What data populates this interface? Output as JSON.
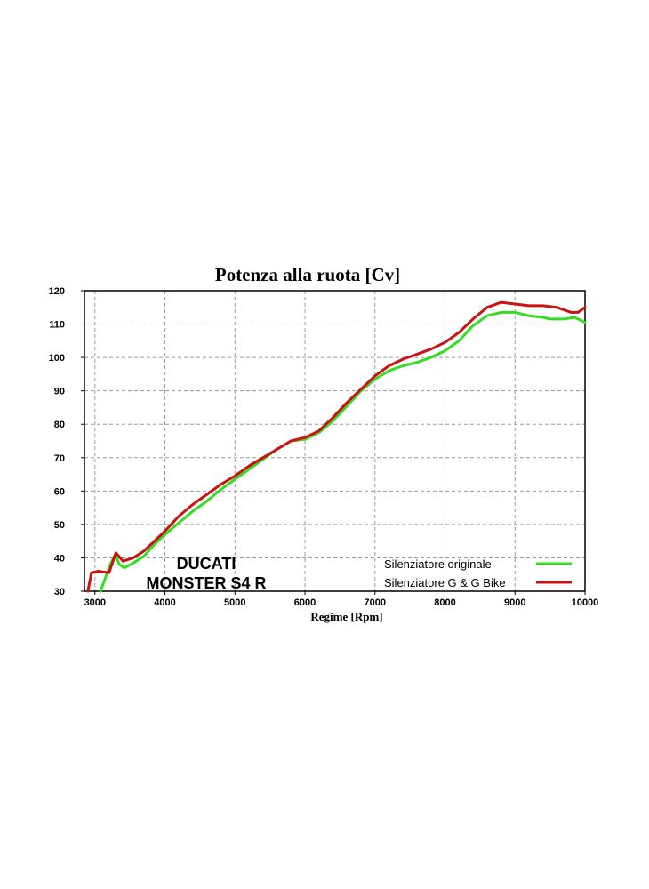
{
  "chart_data": {
    "type": "line",
    "title": "Potenza alla ruota [Cv]",
    "xlabel": "Regime [Rpm]",
    "ylabel": "",
    "xlim": [
      2850,
      10000
    ],
    "ylim": [
      30,
      120
    ],
    "xticks": [
      "3000",
      "4000",
      "5000",
      "6000",
      "7000",
      "8000",
      "9000",
      "10000"
    ],
    "yticks": [
      "30",
      "40",
      "50",
      "60",
      "70",
      "80",
      "90",
      "100",
      "110",
      "120"
    ],
    "grid": true,
    "legend_position": "bottom-right",
    "annotation": [
      "DUCATI",
      "MONSTER S4 R"
    ],
    "series": [
      {
        "name": "Silenziatore originale",
        "color": "#33dd22",
        "points": [
          [
            3080,
            30
          ],
          [
            3150,
            34
          ],
          [
            3220,
            38
          ],
          [
            3290,
            41
          ],
          [
            3350,
            38
          ],
          [
            3420,
            37
          ],
          [
            3550,
            38.5
          ],
          [
            3700,
            40.5
          ],
          [
            3850,
            44
          ],
          [
            4000,
            47
          ],
          [
            4200,
            50.5
          ],
          [
            4400,
            54
          ],
          [
            4600,
            57
          ],
          [
            4800,
            60.5
          ],
          [
            5000,
            63.5
          ],
          [
            5200,
            66.5
          ],
          [
            5400,
            69.5
          ],
          [
            5600,
            72.5
          ],
          [
            5800,
            75
          ],
          [
            6000,
            75.5
          ],
          [
            6200,
            77.5
          ],
          [
            6400,
            81
          ],
          [
            6600,
            85.5
          ],
          [
            6800,
            90
          ],
          [
            7000,
            93.5
          ],
          [
            7200,
            96
          ],
          [
            7400,
            97.5
          ],
          [
            7600,
            98.5
          ],
          [
            7800,
            100
          ],
          [
            8000,
            102
          ],
          [
            8200,
            105
          ],
          [
            8400,
            109.5
          ],
          [
            8600,
            112.5
          ],
          [
            8800,
            113.5
          ],
          [
            9000,
            113.5
          ],
          [
            9200,
            112.5
          ],
          [
            9400,
            112
          ],
          [
            9500,
            111.5
          ],
          [
            9700,
            111.5
          ],
          [
            9850,
            112
          ],
          [
            10000,
            110.5
          ]
        ]
      },
      {
        "name": "Silenziatore G & G Bike",
        "color": "#cc1111",
        "points": [
          [
            2900,
            30
          ],
          [
            2950,
            35.5
          ],
          [
            3050,
            36
          ],
          [
            3200,
            35.5
          ],
          [
            3300,
            41.5
          ],
          [
            3400,
            39
          ],
          [
            3550,
            40
          ],
          [
            3700,
            42
          ],
          [
            3850,
            45
          ],
          [
            4000,
            48
          ],
          [
            4200,
            52.5
          ],
          [
            4400,
            56
          ],
          [
            4600,
            59
          ],
          [
            4800,
            62
          ],
          [
            5000,
            64.5
          ],
          [
            5200,
            67.5
          ],
          [
            5400,
            70
          ],
          [
            5600,
            72.5
          ],
          [
            5800,
            75
          ],
          [
            6000,
            76
          ],
          [
            6200,
            78
          ],
          [
            6400,
            82
          ],
          [
            6600,
            86.5
          ],
          [
            6800,
            90.5
          ],
          [
            7000,
            94.5
          ],
          [
            7200,
            97.5
          ],
          [
            7400,
            99.5
          ],
          [
            7600,
            101
          ],
          [
            7800,
            102.5
          ],
          [
            8000,
            104.5
          ],
          [
            8200,
            107.5
          ],
          [
            8400,
            111.5
          ],
          [
            8600,
            115
          ],
          [
            8800,
            116.5
          ],
          [
            9000,
            116
          ],
          [
            9200,
            115.5
          ],
          [
            9400,
            115.5
          ],
          [
            9600,
            115
          ],
          [
            9800,
            113.5
          ],
          [
            9900,
            113.5
          ],
          [
            10000,
            115
          ]
        ]
      }
    ]
  }
}
